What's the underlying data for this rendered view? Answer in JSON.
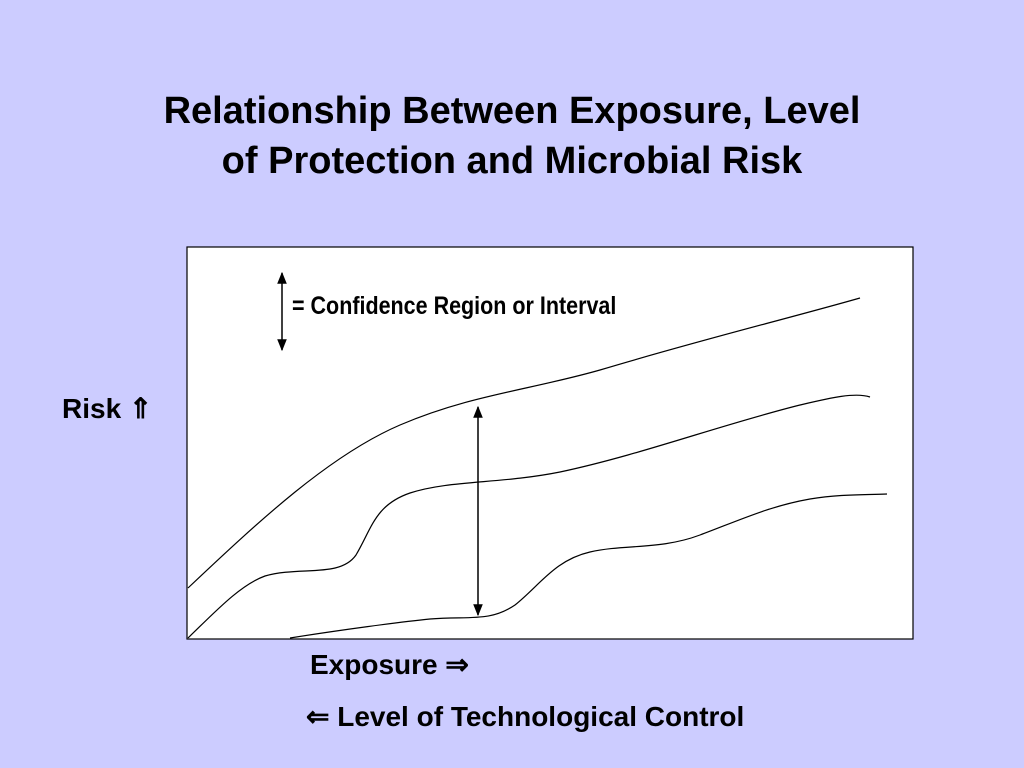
{
  "slide": {
    "title_line1": "Relationship Between Exposure, Level",
    "title_line2": "of Protection and Microbial Risk",
    "background_color": "#ccccff"
  },
  "diagram": {
    "y_axis_label": "Risk ⇑",
    "x_axis_label": "Exposure ⇒",
    "secondary_x_label": "⇐ Level of Technological Control",
    "legend_text": "= Confidence Region or Interval",
    "legend_icon": "double-headed-vertical-arrow",
    "curves": [
      "upper-bound-curve",
      "central-estimate-curve",
      "lower-bound-curve"
    ]
  }
}
